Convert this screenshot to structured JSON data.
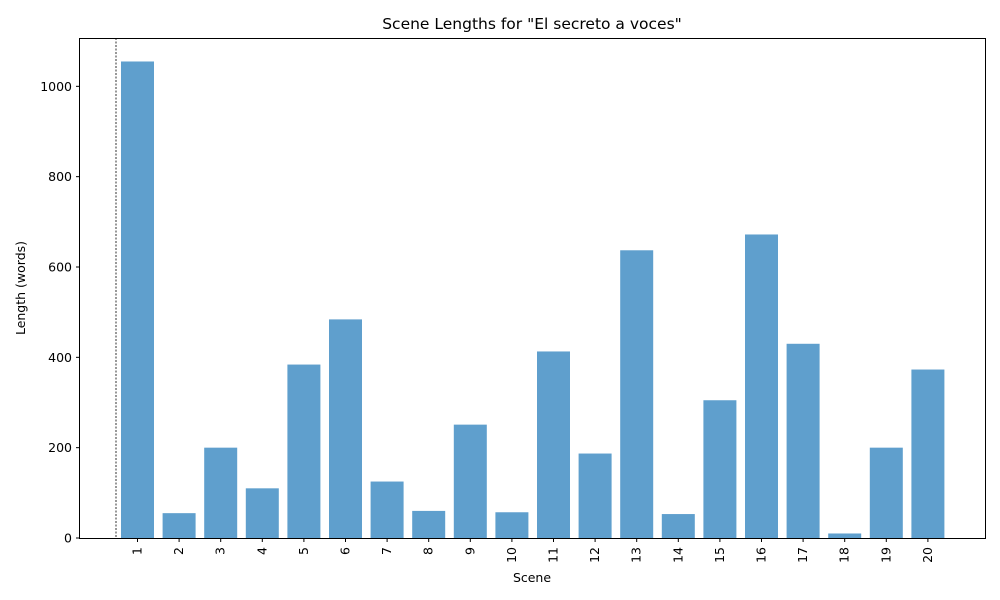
{
  "chart_data": {
    "type": "bar",
    "title": "Scene Lengths for \"El secreto a voces\"",
    "xlabel": "Scene",
    "ylabel": "Length (words)",
    "ylim": [
      0,
      1107
    ],
    "yticks": [
      "0",
      "200",
      "400",
      "600",
      "800",
      "1000"
    ],
    "grid": false,
    "legend": "none",
    "bar_color": "#5f9fcd",
    "categories": [
      "1",
      "2",
      "3",
      "4",
      "5",
      "6",
      "7",
      "8",
      "9",
      "10",
      "11",
      "12",
      "13",
      "14",
      "15",
      "16",
      "17",
      "18",
      "19",
      "20"
    ],
    "values": [
      1055,
      55,
      200,
      110,
      384,
      484,
      125,
      60,
      251,
      57,
      413,
      187,
      637,
      53,
      305,
      672,
      430,
      10,
      200,
      373
    ]
  }
}
